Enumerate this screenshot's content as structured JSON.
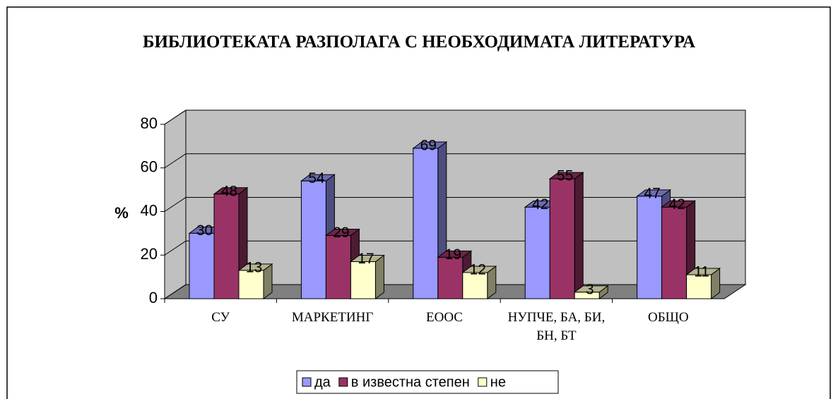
{
  "chart_data": {
    "type": "bar3d",
    "title": "БИБЛИОТЕКАТА РАЗПОЛАГА С НЕОБХОДИМАТА ЛИТЕРАТУРА",
    "ylabel": "%",
    "categories": [
      "СУ",
      "МАРКЕТИНГ",
      "ЕООС",
      "НУПЧЕ, БА, БИ, БН, БТ",
      "ОБЩО"
    ],
    "series": [
      {
        "name": "да",
        "color": "#9999ff",
        "values": [
          30,
          54,
          69,
          42,
          47
        ]
      },
      {
        "name": "в известна степен",
        "color": "#993366",
        "values": [
          48,
          29,
          19,
          55,
          42
        ]
      },
      {
        "name": "не",
        "color": "#ffffcc",
        "values": [
          13,
          17,
          12,
          3,
          11
        ]
      }
    ],
    "ylim": [
      0,
      80
    ],
    "yticks": [
      0,
      20,
      40,
      60,
      80
    ],
    "grid": true,
    "legend": "bottom"
  }
}
